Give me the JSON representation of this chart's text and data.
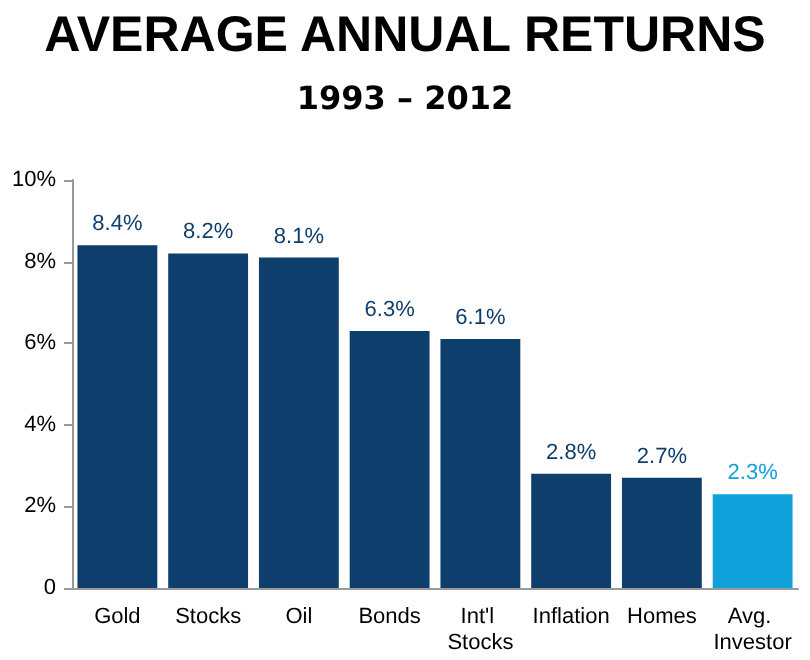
{
  "chart_data": {
    "type": "bar",
    "title": "AVERAGE ANNUAL RETURNS",
    "subtitle": "1993 – 2012",
    "categories": [
      "Gold",
      "Stocks",
      "Oil",
      "Bonds",
      "Int'l Stocks",
      "Inflation",
      "Homes",
      "Avg. Investor"
    ],
    "values": [
      8.4,
      8.2,
      8.1,
      6.3,
      6.1,
      2.8,
      2.7,
      2.3
    ],
    "colors": [
      "#0e3e6b",
      "#0e3e6b",
      "#0e3e6b",
      "#0e3e6b",
      "#0e3e6b",
      "#0e3e6b",
      "#0e3e6b",
      "#10a0dc"
    ],
    "value_labels": [
      "8.4%",
      "8.2%",
      "8.1%",
      "6.3%",
      "6.1%",
      "2.8%",
      "2.7%",
      "2.3%"
    ],
    "ylim": [
      0,
      10
    ],
    "yticks": [
      {
        "value": 0,
        "label": "0"
      },
      {
        "value": 2,
        "label": "2%"
      },
      {
        "value": 4,
        "label": "4%"
      },
      {
        "value": 6,
        "label": "6%"
      },
      {
        "value": 8,
        "label": "8%"
      },
      {
        "value": 10,
        "label": "10%"
      }
    ],
    "grid": false
  }
}
